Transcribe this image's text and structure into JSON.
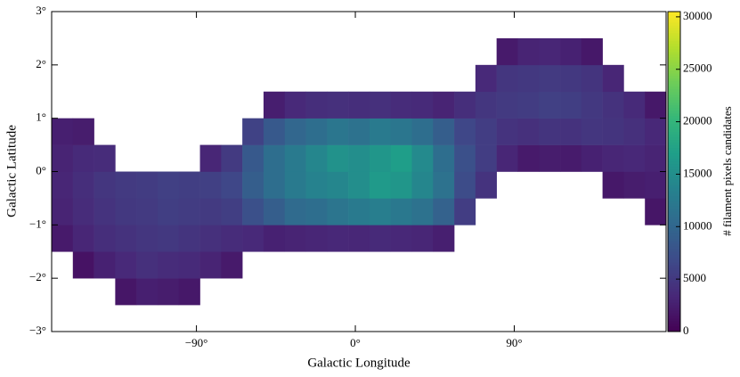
{
  "chart_data": {
    "type": "heatmap",
    "xlabel": "Galactic Longitude",
    "ylabel": "Galactic Latitude",
    "colorbar_label": "# filament pixels candidates",
    "colormap": "viridis",
    "xlim": [
      -172,
      176
    ],
    "ylim": [
      -3,
      3
    ],
    "clim": [
      0,
      30500
    ],
    "xticks": [
      {
        "value": -90,
        "label": "−90°"
      },
      {
        "value": 0,
        "label": "0°"
      },
      {
        "value": 90,
        "label": "90°"
      }
    ],
    "yticks": [
      {
        "value": -3,
        "label": "−3°"
      },
      {
        "value": -2,
        "label": "−2°"
      },
      {
        "value": -1,
        "label": "−1°"
      },
      {
        "value": 0,
        "label": "0°"
      },
      {
        "value": 1,
        "label": "1°"
      },
      {
        "value": 2,
        "label": "2°"
      },
      {
        "value": 3,
        "label": "3°"
      }
    ],
    "cticks": [
      0,
      5000,
      10000,
      15000,
      20000,
      25000,
      30000
    ],
    "xbins": [
      -172,
      -160,
      -148,
      -136,
      -124,
      -112,
      -100,
      -88,
      -76,
      -64,
      -52,
      -40,
      -28,
      -16,
      -4,
      8,
      20,
      32,
      44,
      56,
      68,
      80,
      92,
      104,
      116,
      128,
      140,
      152,
      164,
      176
    ],
    "ybins": [
      -3,
      -2.5,
      -2,
      -1.5,
      -1,
      -0.5,
      0,
      0.5,
      1,
      1.5,
      2,
      2.5,
      3
    ],
    "z": [
      [
        null,
        null,
        null,
        null,
        null,
        null,
        null,
        null,
        null,
        null,
        null,
        null,
        null,
        null,
        null,
        null,
        null,
        null,
        null,
        null,
        null,
        null,
        null,
        null,
        null,
        null,
        null,
        null,
        null
      ],
      [
        null,
        null,
        null,
        1800,
        2600,
        2400,
        2000,
        null,
        null,
        null,
        null,
        null,
        null,
        null,
        null,
        null,
        null,
        null,
        null,
        null,
        null,
        null,
        null,
        null,
        null,
        null,
        null,
        null,
        null
      ],
      [
        null,
        1500,
        2800,
        3500,
        4200,
        3800,
        3600,
        3000,
        2200,
        null,
        null,
        null,
        null,
        null,
        null,
        null,
        null,
        null,
        null,
        null,
        null,
        null,
        null,
        null,
        null,
        null,
        null,
        null,
        null
      ],
      [
        2200,
        3200,
        4000,
        4400,
        4800,
        5000,
        4600,
        4200,
        3800,
        3500,
        2800,
        3000,
        3200,
        3400,
        3300,
        3600,
        3400,
        3200,
        2600,
        null,
        null,
        null,
        null,
        null,
        null,
        null,
        null,
        null,
        null
      ],
      [
        3000,
        3800,
        4500,
        5000,
        5200,
        5600,
        5400,
        5200,
        5600,
        7500,
        9000,
        10500,
        11000,
        11800,
        12500,
        13000,
        12200,
        11500,
        9500,
        5500,
        null,
        null,
        null,
        null,
        null,
        null,
        null,
        null,
        1800
      ],
      [
        3200,
        4000,
        4800,
        5200,
        5400,
        5800,
        5600,
        5800,
        6500,
        9000,
        11000,
        12500,
        13500,
        14000,
        15000,
        16500,
        16000,
        14000,
        11500,
        7000,
        4500,
        null,
        null,
        null,
        null,
        null,
        2000,
        2400,
        2600
      ],
      [
        3000,
        3600,
        3800,
        null,
        null,
        null,
        null,
        3200,
        5200,
        8500,
        11000,
        12500,
        14000,
        15500,
        15000,
        16000,
        17000,
        14500,
        11000,
        7500,
        5500,
        3200,
        2200,
        2400,
        2300,
        2800,
        3200,
        3400,
        3000
      ],
      [
        2600,
        2400,
        null,
        null,
        null,
        null,
        null,
        null,
        null,
        6000,
        8500,
        10000,
        11000,
        12000,
        11500,
        12500,
        12000,
        11000,
        9000,
        6500,
        5500,
        4500,
        4200,
        4600,
        4400,
        4800,
        4600,
        4200,
        3400
      ],
      [
        null,
        null,
        null,
        null,
        null,
        null,
        null,
        null,
        null,
        null,
        2500,
        3500,
        4000,
        4200,
        4000,
        4200,
        3800,
        3600,
        3000,
        4000,
        4800,
        5200,
        5400,
        5800,
        5600,
        5000,
        4400,
        3600,
        2000
      ],
      [
        null,
        null,
        null,
        null,
        null,
        null,
        null,
        null,
        null,
        null,
        null,
        null,
        null,
        null,
        null,
        null,
        null,
        null,
        null,
        null,
        3500,
        4800,
        5000,
        5200,
        5000,
        4600,
        3200,
        null,
        null
      ],
      [
        null,
        null,
        null,
        null,
        null,
        null,
        null,
        null,
        null,
        null,
        null,
        null,
        null,
        null,
        null,
        null,
        null,
        null,
        null,
        null,
        null,
        2200,
        3000,
        3200,
        2800,
        2000,
        null,
        null,
        null
      ],
      [
        null,
        null,
        null,
        null,
        null,
        null,
        null,
        null,
        null,
        null,
        null,
        null,
        null,
        null,
        null,
        null,
        null,
        null,
        null,
        null,
        null,
        null,
        null,
        null,
        null,
        null,
        null,
        null,
        null
      ]
    ]
  }
}
